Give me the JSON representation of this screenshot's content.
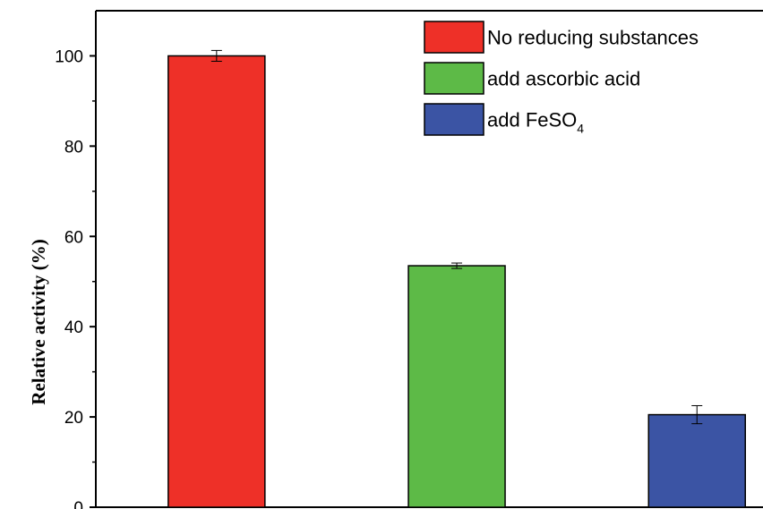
{
  "chart_data": {
    "type": "bar",
    "title": "",
    "xlabel": "",
    "ylabel": "Relative activity (%)",
    "ylim": [
      0,
      110
    ],
    "yticks": [
      0,
      20,
      40,
      60,
      80,
      100
    ],
    "grid": false,
    "legend_position": "top-right",
    "series": [
      {
        "name": "No reducing substances",
        "legend_main": "No reducing substances",
        "legend_sub": "",
        "value": 100,
        "error": 1.2,
        "color": "#ee3028"
      },
      {
        "name": "add ascorbic acid",
        "legend_main": "add ascorbic acid",
        "legend_sub": "",
        "value": 53.5,
        "error": 0.6,
        "color": "#5dba47"
      },
      {
        "name": "add FeSO4",
        "legend_main": "add FeSO",
        "legend_sub": "4",
        "value": 20.5,
        "error": 2.0,
        "color": "#3b54a4"
      }
    ]
  }
}
